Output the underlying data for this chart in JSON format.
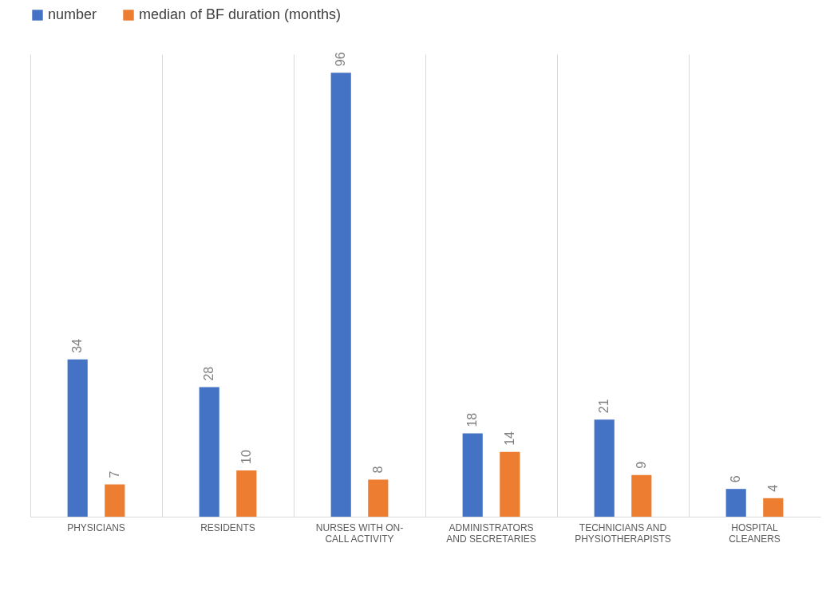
{
  "chart_data": {
    "type": "bar",
    "categories": [
      "PHYSICIANS",
      "RESIDENTS",
      "NURSES WITH ON-CALL ACTIVITY",
      "ADMINISTRATORS AND SECRETARIES",
      "TECHNICIANS AND PHYSIOTHERAPISTS",
      "HOSPITAL CLEANERS"
    ],
    "series": [
      {
        "name": "number",
        "color": "#4472c4",
        "values": [
          34,
          28,
          96,
          18,
          21,
          6
        ]
      },
      {
        "name": "median of BF duration (months)",
        "color": "#ed7d31",
        "values": [
          7,
          10,
          8,
          14,
          9,
          4
        ]
      }
    ],
    "data_labels": true,
    "legend": "top",
    "grid": "x"
  }
}
